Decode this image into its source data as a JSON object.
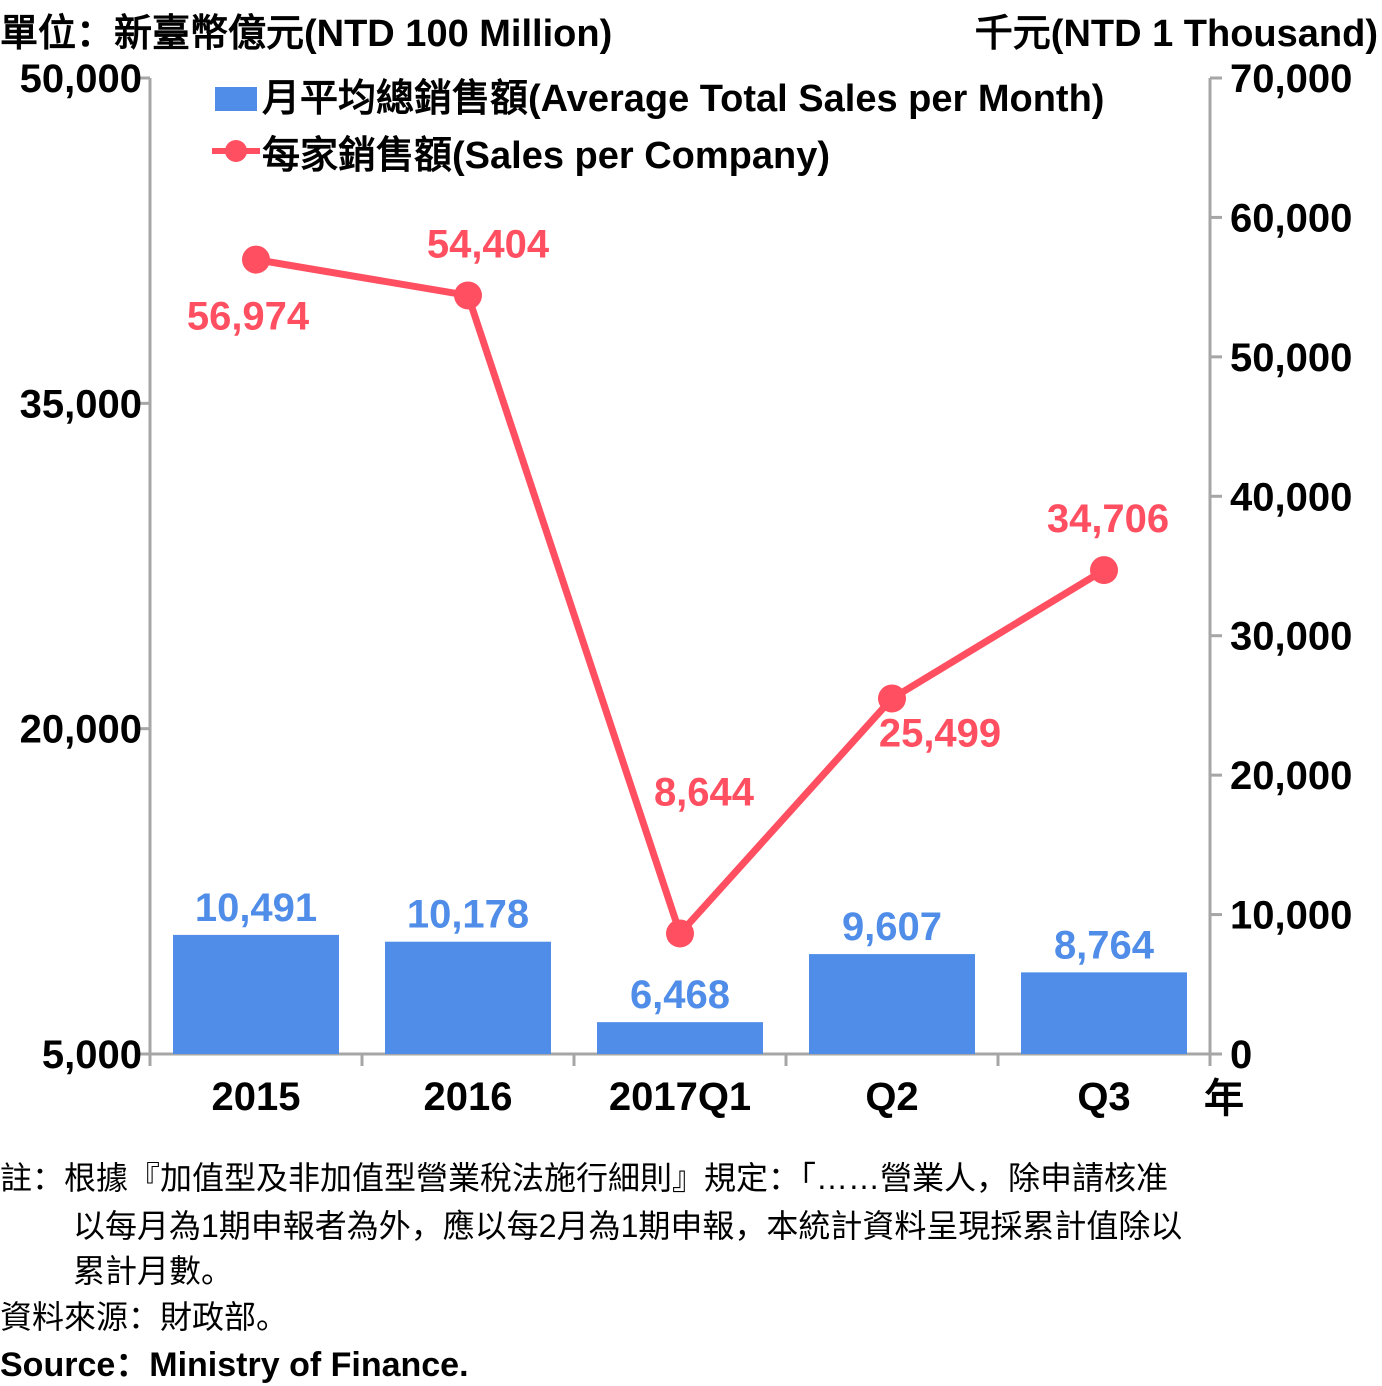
{
  "units": {
    "left": "單位：新臺幣億元(NTD 100 Million)",
    "right": "千元(NTD 1 Thousand)"
  },
  "chart_data": {
    "type": "bar+line",
    "categories": [
      "2015",
      "2016",
      "2017Q1",
      "Q2",
      "Q3"
    ],
    "x_suffix": "年",
    "series": [
      {
        "name": "月平均總銷售額(Average Total Sales per Month)",
        "type": "bar",
        "axis": "left",
        "color": "#4f8de9",
        "values": [
          10491,
          10178,
          6468,
          9607,
          8764
        ],
        "labels": [
          "10,491",
          "10,178",
          "6,468",
          "9,607",
          "8,764"
        ]
      },
      {
        "name": "每家銷售額(Sales per Company)",
        "type": "line",
        "axis": "right",
        "color": "#ff4f61",
        "values": [
          56974,
          54404,
          8644,
          25499,
          34706
        ],
        "labels": [
          "56,974",
          "54,404",
          "8,644",
          "25,499",
          "34,706"
        ]
      }
    ],
    "y_left": {
      "min": 5000,
      "max": 50000,
      "ticks": [
        5000,
        20000,
        35000,
        50000
      ],
      "tick_labels": [
        "5,000",
        "20,000",
        "35,000",
        "50,000"
      ]
    },
    "y_right": {
      "min": 0,
      "max": 70000,
      "ticks": [
        0,
        10000,
        20000,
        30000,
        40000,
        50000,
        60000,
        70000
      ],
      "tick_labels": [
        "0",
        "10,000",
        "20,000",
        "30,000",
        "40,000",
        "50,000",
        "60,000",
        "70,000"
      ]
    },
    "grid": false,
    "legend": "top"
  },
  "notes": {
    "line1": "註：根據『加值型及非加值型營業稅法施行細則』規定：「……營業人，除申請核准",
    "line2": "以每月為1期申報者為外，應以每2月為1期申報，本統計資料呈現採累計值除以",
    "line3": "累計月數。",
    "source_zh": "資料來源：財政部。",
    "source_en": "Source：Ministry of Finance."
  }
}
